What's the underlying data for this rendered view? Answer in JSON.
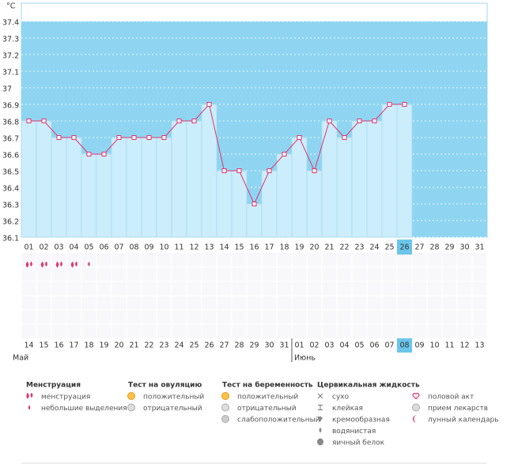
{
  "chart_data": {
    "type": "line",
    "y_unit": "°C",
    "categories": [
      "01",
      "02",
      "03",
      "04",
      "05",
      "06",
      "07",
      "08",
      "09",
      "10",
      "11",
      "12",
      "13",
      "14",
      "15",
      "16",
      "17",
      "18",
      "19",
      "20",
      "21",
      "22",
      "23",
      "24",
      "25",
      "26",
      "27",
      "28",
      "29",
      "30",
      "31"
    ],
    "series": [
      {
        "color": "#e0356e",
        "values": [
          36.8,
          36.8,
          36.7,
          36.7,
          36.6,
          36.6,
          36.7,
          36.7,
          36.7,
          36.7,
          36.8,
          36.8,
          36.9,
          36.5,
          36.5,
          36.3,
          36.5,
          36.6,
          36.7,
          36.5,
          36.8,
          36.7,
          36.8,
          36.8,
          36.9,
          36.9,
          null,
          null,
          null,
          null,
          null
        ]
      }
    ],
    "ylim": [
      36.1,
      37.4
    ],
    "yticks": [
      36.1,
      36.2,
      36.3,
      36.4,
      36.5,
      36.6,
      36.7,
      36.8,
      36.9,
      {
        "value": 37.0,
        "label": "37"
      },
      37.1,
      37.2,
      37.3,
      37.4
    ],
    "grid": true,
    "highlight_index": 25,
    "flow": [
      0,
      0,
      0,
      0,
      1
    ],
    "dates": [
      "14",
      "15",
      "16",
      "17",
      "18",
      "19",
      "20",
      "21",
      "22",
      "23",
      "24",
      "25",
      "26",
      "27",
      "28",
      "29",
      "30",
      "31",
      "01",
      "02",
      "03",
      "04",
      "05",
      "06",
      "07",
      "08",
      "09",
      "10",
      "11",
      "12",
      "13"
    ],
    "red_dates": [
      3,
      4,
      10,
      11,
      17,
      18,
      24
    ],
    "months": [
      {
        "label": "Май",
        "start": 0
      },
      {
        "label": "Июнь",
        "start": 18
      }
    ]
  },
  "legend": [
    {
      "title": "Менструация",
      "items": [
        "менструация",
        "небольшие выделения"
      ]
    },
    {
      "title": "Тест на овуляцию",
      "items": [
        "положительный",
        "отрицательный"
      ]
    },
    {
      "title": "Тест на беременность",
      "items": [
        "положительный",
        "отрицательный",
        "слабоположительный"
      ]
    },
    {
      "title": "Цервикальная жидкость",
      "items": [
        "сухо",
        "клейкая",
        "кремообразная",
        "водянистая",
        "яичный белок"
      ]
    },
    {
      "items": [
        "половой акт",
        "прием лекарств",
        "лунный календарь"
      ]
    }
  ]
}
